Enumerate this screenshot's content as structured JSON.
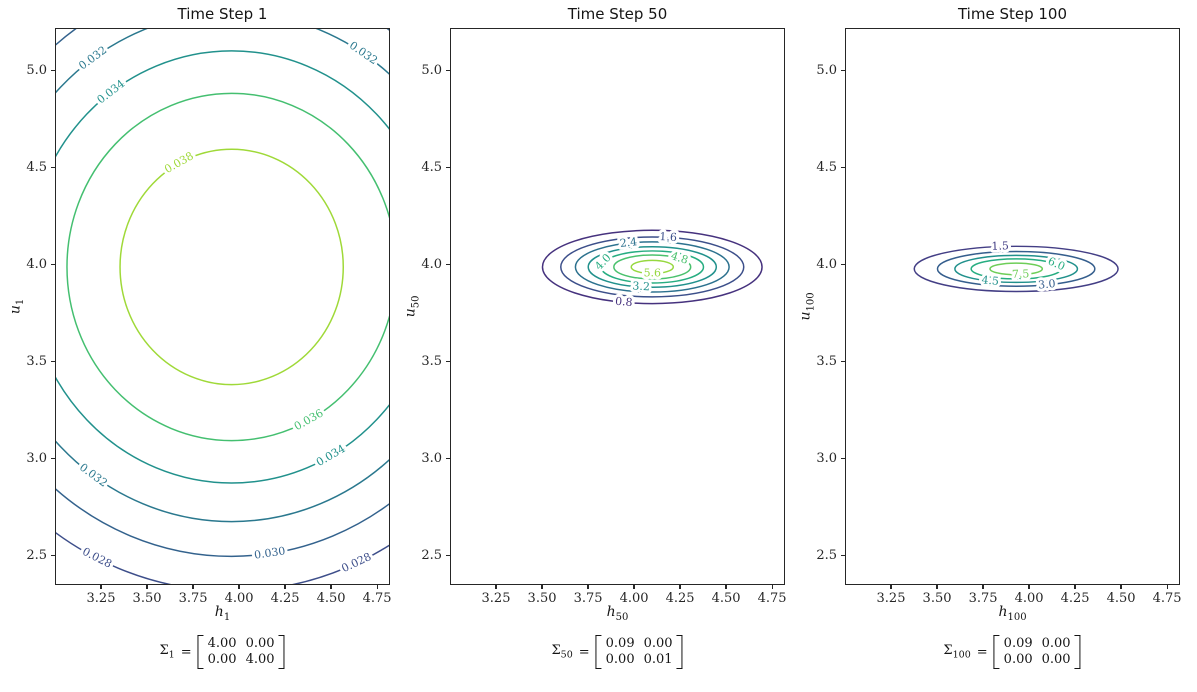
{
  "chart_data": [
    {
      "type": "contour",
      "title": "Time Step 1",
      "xlabel": {
        "base": "h",
        "sub": "1"
      },
      "ylabel": {
        "base": "u",
        "sub": "1"
      },
      "xlim": [
        3.0,
        4.82
      ],
      "ylim": [
        2.35,
        5.22
      ],
      "xticks": [
        "3.25",
        "3.50",
        "3.75",
        "4.00",
        "4.25",
        "4.50",
        "4.75"
      ],
      "yticks": [
        "2.5",
        "3.0",
        "3.5",
        "4.0",
        "4.5",
        "5.0"
      ],
      "center": [
        3.96,
        3.99
      ],
      "contours": [
        {
          "level": "0.028",
          "rx": 1.68,
          "ry": 1.68,
          "color": "#3d4e8a",
          "label_angles": [
            -116,
            -66
          ]
        },
        {
          "level": "0.030",
          "rx": 1.5,
          "ry": 1.5,
          "color": "#33628d",
          "label_angles": [
            -82
          ]
        },
        {
          "level": "0.032",
          "rx": 1.32,
          "ry": 1.32,
          "color": "#2a788e",
          "label_angles": [
            125,
            57,
            -125
          ]
        },
        {
          "level": "0.034",
          "rx": 1.12,
          "ry": 1.12,
          "color": "#21918c",
          "label_angles": [
            126,
            -61
          ]
        },
        {
          "level": "0.036",
          "rx": 0.9,
          "ry": 0.9,
          "color": "#44bf70",
          "label_angles": [
            -62
          ]
        },
        {
          "level": "0.038",
          "rx": 0.61,
          "ry": 0.61,
          "color": "#9fd938",
          "label_angles": [
            118
          ]
        }
      ],
      "sigma": {
        "symbol": "Σ",
        "sub": "1",
        "eq": "=",
        "rows": [
          [
            "4.00",
            "0.00"
          ],
          [
            "0.00",
            "4.00"
          ]
        ]
      }
    },
    {
      "type": "contour",
      "title": "Time Step 50",
      "xlabel": {
        "base": "h",
        "sub": "50"
      },
      "ylabel": {
        "base": "u",
        "sub": "50"
      },
      "xlim": [
        3.0,
        4.82
      ],
      "ylim": [
        2.35,
        5.22
      ],
      "xticks": [
        "3.25",
        "3.50",
        "3.75",
        "4.00",
        "4.25",
        "4.50",
        "4.75"
      ],
      "yticks": [
        "2.5",
        "3.0",
        "3.5",
        "4.0",
        "4.5",
        "5.0"
      ],
      "center": [
        4.1,
        3.99
      ],
      "contours": [
        {
          "level": "0.8",
          "rx": 0.6,
          "ry": 0.19,
          "color": "#46327e",
          "label_angles": [
            -105
          ]
        },
        {
          "level": "1.6",
          "rx": 0.5,
          "ry": 0.155,
          "color": "#3c4f8a",
          "label_angles": [
            80
          ]
        },
        {
          "level": "2.4",
          "rx": 0.42,
          "ry": 0.13,
          "color": "#2c718e",
          "label_angles": [
            108
          ]
        },
        {
          "level": "3.2",
          "rx": 0.35,
          "ry": 0.105,
          "color": "#21918c",
          "label_angles": [
            -100
          ]
        },
        {
          "level": "4.0",
          "rx": 0.28,
          "ry": 0.083,
          "color": "#27ad81",
          "label_angles": [
            163
          ]
        },
        {
          "level": "4.8",
          "rx": 0.21,
          "ry": 0.062,
          "color": "#4ac16d",
          "label_angles": [
            45
          ]
        },
        {
          "level": "5.6",
          "rx": 0.115,
          "ry": 0.034,
          "color": "#96d83f",
          "label_angles": [
            -90
          ]
        }
      ],
      "sigma": {
        "symbol": "Σ",
        "sub": "50",
        "eq": "=",
        "rows": [
          [
            "0.09",
            "0.00"
          ],
          [
            "0.00",
            "0.01"
          ]
        ]
      }
    },
    {
      "type": "contour",
      "title": "Time Step 100",
      "xlabel": {
        "base": "h",
        "sub": "100"
      },
      "ylabel": {
        "base": "u",
        "sub": "100"
      },
      "xlim": [
        3.0,
        4.82
      ],
      "ylim": [
        2.35,
        5.22
      ],
      "xticks": [
        "3.25",
        "3.50",
        "3.75",
        "4.00",
        "4.25",
        "4.50",
        "4.75"
      ],
      "yticks": [
        "2.5",
        "3.0",
        "3.5",
        "4.0",
        "4.5",
        "5.0"
      ],
      "center": [
        3.93,
        3.98
      ],
      "contours": [
        {
          "level": "1.5",
          "rx": 0.557,
          "ry": 0.117,
          "color": "#433e85",
          "label_angles": [
            99
          ]
        },
        {
          "level": "3.0",
          "rx": 0.43,
          "ry": 0.09,
          "color": "#355e8d",
          "label_angles": [
            -67
          ]
        },
        {
          "level": "4.5",
          "rx": 0.335,
          "ry": 0.07,
          "color": "#21918c",
          "label_angles": [
            -115
          ]
        },
        {
          "level": "6.0",
          "rx": 0.246,
          "ry": 0.052,
          "color": "#27ad81",
          "label_angles": [
            27
          ]
        },
        {
          "level": "7.5",
          "rx": 0.143,
          "ry": 0.03,
          "color": "#6ece58",
          "label_angles": [
            -80
          ]
        }
      ],
      "sigma": {
        "symbol": "Σ",
        "sub": "100",
        "eq": "=",
        "rows": [
          [
            "0.09",
            "0.00"
          ],
          [
            "0.00",
            "0.00"
          ]
        ]
      }
    }
  ]
}
